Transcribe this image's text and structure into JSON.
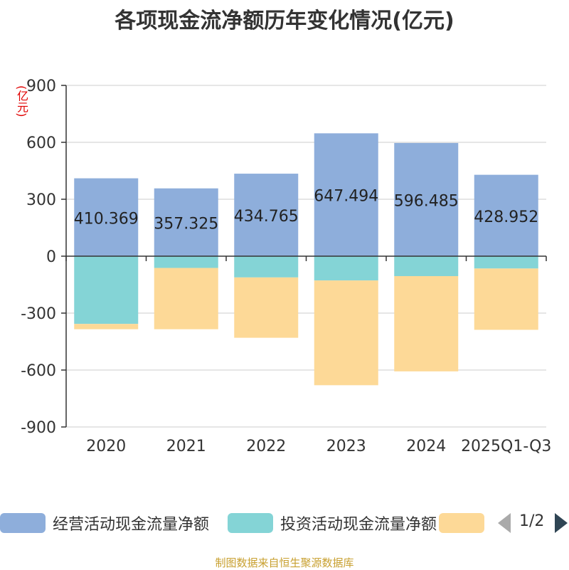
{
  "title": "各项现金流净额历年变化情况(亿元)",
  "unit_label": "(亿元)",
  "source": "制图数据来自恒生聚源数据库",
  "legend": {
    "items": [
      {
        "label": "经营活动现金流量净额",
        "color": "#8eaedb"
      },
      {
        "label": "投资活动现金流量净额",
        "color": "#84d4d6"
      },
      {
        "label": "",
        "color": "#fdd997"
      }
    ],
    "page_text": "1/2"
  },
  "chart_data": {
    "type": "bar",
    "stacked": true,
    "title": "各项现金流净额历年变化情况(亿元)",
    "ylabel": "(亿元)",
    "ylim": [
      -900,
      900
    ],
    "yticks": [
      900,
      600,
      300,
      0,
      -300,
      -600,
      -900
    ],
    "categories": [
      "2020",
      "2021",
      "2022",
      "2023",
      "2024",
      "2025Q1-Q3"
    ],
    "grid": true,
    "legend_position": "bottom",
    "series": [
      {
        "name": "经营活动现金流量净额",
        "color": "#8eaedb",
        "values": [
          410.369,
          357.325,
          434.765,
          647.494,
          596.485,
          428.952
        ],
        "labels": [
          "410.369",
          "357.325",
          "434.765",
          "647.494",
          "596.485",
          "428.952"
        ]
      },
      {
        "name": "投资活动现金流量净额",
        "color": "#84d4d6",
        "values": [
          -357,
          -62,
          -112,
          -128,
          -105,
          -65
        ]
      },
      {
        "color": "#fdd997",
        "values": [
          -28,
          -323,
          -318,
          -552,
          -502,
          -323
        ]
      }
    ]
  }
}
